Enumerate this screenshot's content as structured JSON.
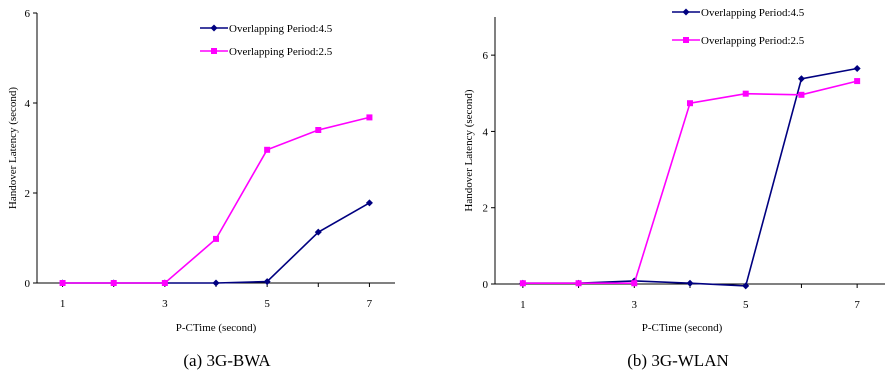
{
  "chart_data": [
    {
      "type": "line",
      "xlabel": "P-CTime (second)",
      "ylabel": "Handover Latency (second)",
      "caption": "(a) 3G-BWA",
      "x": [
        1,
        2,
        3,
        4,
        5,
        6,
        7
      ],
      "xticks": [
        1,
        3,
        5,
        7
      ],
      "xlim": [
        0.5,
        7.5
      ],
      "ylim": [
        0,
        6
      ],
      "yticks": [
        0,
        2,
        4,
        6
      ],
      "legend_position": "top-right",
      "grid": false,
      "series": [
        {
          "name": "Overlapping Period:4.5",
          "color": "#000080",
          "marker": "diamond",
          "values": [
            0,
            0,
            0,
            0,
            0.03,
            1.13,
            1.78
          ]
        },
        {
          "name": "Overlapping Period:2.5",
          "color": "#ff00ff",
          "marker": "square",
          "values": [
            0,
            0,
            0,
            0.98,
            2.96,
            3.4,
            3.68
          ]
        }
      ]
    },
    {
      "type": "line",
      "xlabel": "P-CTime (second)",
      "ylabel": "Handover Latency (second)",
      "caption": "(b) 3G-WLAN",
      "x": [
        1,
        2,
        3,
        4,
        5,
        6,
        7
      ],
      "xticks": [
        1,
        3,
        5,
        7
      ],
      "xlim": [
        0.5,
        7.5
      ],
      "ylim": [
        0,
        7
      ],
      "yticks": [
        0,
        2,
        4,
        6
      ],
      "legend_position": "top-right",
      "grid": false,
      "series": [
        {
          "name": "Overlapping Period:4.5",
          "color": "#000080",
          "marker": "diamond",
          "values": [
            0.02,
            0.02,
            0.08,
            0.02,
            -0.05,
            5.38,
            5.65
          ]
        },
        {
          "name": "Overlapping Period:2.5",
          "color": "#ff00ff",
          "marker": "square",
          "values": [
            0.02,
            0.02,
            0.02,
            4.74,
            4.99,
            4.96,
            5.32
          ]
        }
      ]
    }
  ]
}
